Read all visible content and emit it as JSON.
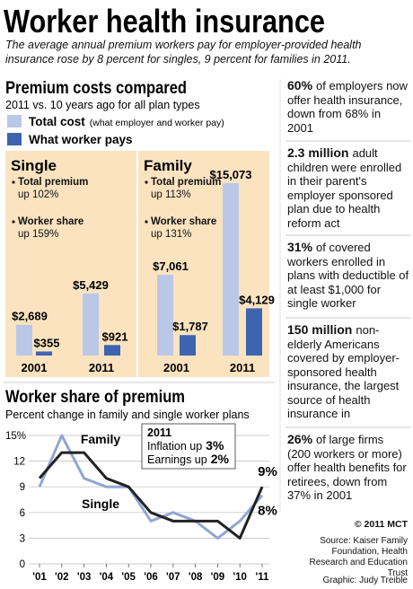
{
  "title": "Worker health insurance",
  "subtitle": "The average annual premium workers pay for employer-provided health insurance rose by 8 percent for singles, 9 percent for families in 2011.",
  "chart_data": [
    {
      "type": "bar",
      "title": "Premium costs compared",
      "subtitle": "2011 vs. 10 years ago for all plan types",
      "legend": [
        {
          "name": "Total cost",
          "note": "(what employer and worker pay)",
          "color": "#bac8e8"
        },
        {
          "name": "What worker pays",
          "color": "#3e64b0"
        }
      ],
      "background": "#fbe3c0",
      "panels": [
        {
          "title": "Single",
          "notes": [
            {
              "label": "Total premium",
              "text": "up 102%"
            },
            {
              "label": "Worker share",
              "text": "up 159%"
            }
          ],
          "categories": [
            "2001",
            "2011"
          ],
          "series": [
            {
              "values": [
                2689,
                5429
              ],
              "value_labels": [
                "$2,689",
                "$5,429"
              ]
            },
            {
              "values": [
                355,
                921
              ],
              "value_labels": [
                "$355",
                "$921"
              ]
            }
          ]
        },
        {
          "title": "Family",
          "notes": [
            {
              "label": "Total premium",
              "text": "up 113%"
            },
            {
              "label": "Worker share",
              "text": "up 131%"
            }
          ],
          "categories": [
            "2001",
            "2011"
          ],
          "series": [
            {
              "values": [
                7061,
                15073
              ],
              "value_labels": [
                "$7,061",
                "$15,073"
              ]
            },
            {
              "values": [
                1787,
                4129
              ],
              "value_labels": [
                "$1,787",
                "$4,129"
              ]
            }
          ]
        }
      ]
    },
    {
      "type": "line",
      "title": "Worker share of premium",
      "subtitle": "Percent change in family and single worker plans",
      "categories": [
        "'01",
        "'02",
        "'03",
        "'04",
        "'05",
        "'06",
        "'07",
        "'08",
        "'09",
        "'10",
        "'11"
      ],
      "ylim": [
        0,
        15
      ],
      "yticks": [
        0,
        3,
        6,
        9,
        12,
        {
          "value": 15,
          "label": "15%"
        }
      ],
      "grid": true,
      "series": [
        {
          "name": "Family",
          "color": "#222222",
          "values": [
            10,
            13,
            13,
            10,
            9,
            6,
            5,
            5,
            5,
            3,
            9
          ],
          "value_labels": [
            null,
            null,
            null,
            null,
            null,
            null,
            null,
            null,
            null,
            null,
            "9%"
          ]
        },
        {
          "name": "Single",
          "color": "#93a5d3",
          "values": [
            9,
            15,
            10,
            9,
            9,
            5,
            6,
            5,
            3,
            5,
            8
          ],
          "value_labels": [
            null,
            null,
            null,
            null,
            null,
            null,
            null,
            null,
            null,
            null,
            "8%"
          ]
        }
      ],
      "annotation": {
        "title": "2011",
        "lines": [
          {
            "text": "Inflation up",
            "value": "3%"
          },
          {
            "text": "Earnings up",
            "value": "2%"
          }
        ]
      }
    }
  ],
  "facts": [
    {
      "bold": "60%",
      "text": "of employers now offer health insurance, down from 68% in 2001"
    },
    {
      "bold": "2.3 million",
      "text": "adult children were enrolled in their parent's employer sponsored plan due to health reform act"
    },
    {
      "bold": "31%",
      "text": "of covered workers enrolled in plans with deductible of at least $1,000 for single worker"
    },
    {
      "bold": "150 million",
      "text": "non-elderly Americans covered by employer- sponsored health insurance, the largest source of health insurance in"
    },
    {
      "bold": "26%",
      "text": "of large firms (200 workers or more) offer health benefits for retirees, down from 37% in 2001"
    }
  ],
  "credit": "© 2011 MCT",
  "source": "Source: Kaiser Family Foundation, Health Research and Education Trust",
  "graphic": "Graphic: Judy Treible"
}
